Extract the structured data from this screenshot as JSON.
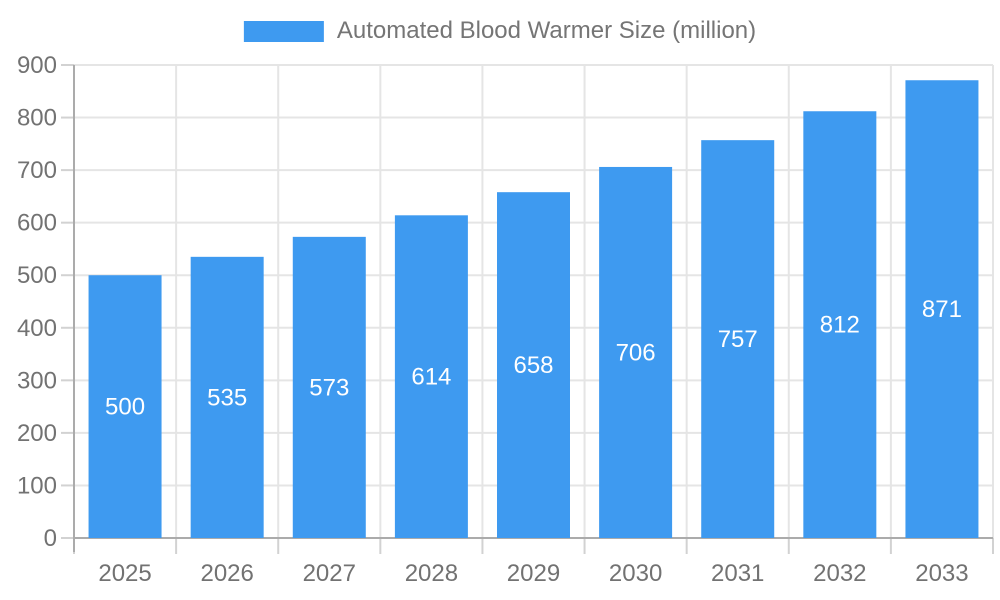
{
  "chart_data": {
    "type": "bar",
    "title": "",
    "legend": {
      "label": "Automated Blood Warmer Size (million)",
      "position": "top"
    },
    "series": [
      {
        "name": "Automated Blood Warmer Size (million)",
        "values": [
          500,
          535,
          573,
          614,
          658,
          706,
          757,
          812,
          871
        ]
      }
    ],
    "categories": [
      "2025",
      "2026",
      "2027",
      "2028",
      "2029",
      "2030",
      "2031",
      "2032",
      "2033"
    ],
    "bar_labels": [
      "500",
      "535",
      "573",
      "614",
      "658",
      "706",
      "757",
      "812",
      "871"
    ],
    "xlabel": "",
    "ylabel": "",
    "ylim": [
      0,
      900
    ],
    "yticks": [
      0,
      100,
      200,
      300,
      400,
      500,
      600,
      700,
      800,
      900
    ],
    "grid": true,
    "colors": {
      "bar": "#3E9AF0",
      "bar_label": "#FFFFFF",
      "axis_text": "#727272",
      "axis_line": "#ABABAB",
      "grid_line": "#E5E5E5",
      "tick_line": "#D2D2D2",
      "background": "#FFFFFF"
    }
  }
}
